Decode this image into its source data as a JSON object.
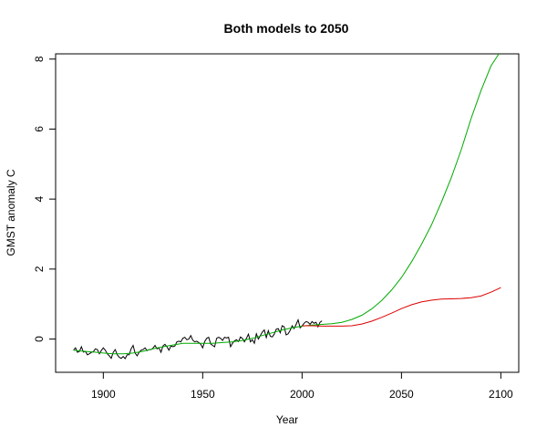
{
  "chart_data": {
    "type": "line",
    "title": "Both models to 2050",
    "xlabel": "Year",
    "ylabel": "GMST anomaly C",
    "xlim": [
      1876,
      2109
    ],
    "ylim": [
      -0.95,
      8.15
    ],
    "xticks": [
      1900,
      1950,
      2000,
      2050,
      2100
    ],
    "yticks": [
      0,
      2,
      4,
      6,
      8
    ],
    "grid": false,
    "legend": "none",
    "series": [
      {
        "color": "#000000",
        "x": [
          1885,
          1886,
          1887,
          1888,
          1889,
          1890,
          1891,
          1892,
          1893,
          1894,
          1895,
          1896,
          1897,
          1898,
          1899,
          1900,
          1901,
          1902,
          1903,
          1904,
          1905,
          1906,
          1907,
          1908,
          1909,
          1910,
          1911,
          1912,
          1913,
          1914,
          1915,
          1916,
          1917,
          1918,
          1919,
          1920,
          1921,
          1922,
          1923,
          1924,
          1925,
          1926,
          1927,
          1928,
          1929,
          1930,
          1931,
          1932,
          1933,
          1934,
          1935,
          1936,
          1937,
          1938,
          1939,
          1940,
          1941,
          1942,
          1943,
          1944,
          1945,
          1946,
          1947,
          1948,
          1949,
          1950,
          1951,
          1952,
          1953,
          1954,
          1955,
          1956,
          1957,
          1958,
          1959,
          1960,
          1961,
          1962,
          1963,
          1964,
          1965,
          1966,
          1967,
          1968,
          1969,
          1970,
          1971,
          1972,
          1973,
          1974,
          1975,
          1976,
          1977,
          1978,
          1979,
          1980,
          1981,
          1982,
          1983,
          1984,
          1985,
          1986,
          1987,
          1988,
          1989,
          1990,
          1991,
          1992,
          1993,
          1994,
          1995,
          1996,
          1997,
          1998,
          1999,
          2000,
          2001,
          2002,
          2003,
          2004,
          2005,
          2006,
          2007,
          2008,
          2009,
          2010
        ],
        "values": [
          -0.32,
          -0.25,
          -0.38,
          -0.35,
          -0.22,
          -0.37,
          -0.35,
          -0.45,
          -0.42,
          -0.38,
          -0.36,
          -0.28,
          -0.3,
          -0.42,
          -0.33,
          -0.25,
          -0.32,
          -0.42,
          -0.48,
          -0.55,
          -0.38,
          -0.3,
          -0.45,
          -0.52,
          -0.55,
          -0.5,
          -0.56,
          -0.45,
          -0.45,
          -0.28,
          -0.18,
          -0.4,
          -0.48,
          -0.38,
          -0.32,
          -0.3,
          -0.25,
          -0.33,
          -0.3,
          -0.3,
          -0.26,
          -0.18,
          -0.28,
          -0.25,
          -0.38,
          -0.2,
          -0.15,
          -0.22,
          -0.32,
          -0.2,
          -0.22,
          -0.2,
          -0.08,
          -0.06,
          -0.08,
          0.02,
          0.05,
          -0.02,
          0.0,
          0.1,
          -0.03,
          -0.08,
          -0.06,
          -0.1,
          -0.15,
          -0.25,
          -0.07,
          0.02,
          0.05,
          -0.14,
          -0.18,
          -0.22,
          0.02,
          0.05,
          0.02,
          -0.04,
          0.05,
          0.03,
          0.05,
          -0.22,
          -0.12,
          -0.05,
          -0.02,
          -0.07,
          0.06,
          0.02,
          -0.08,
          0.02,
          0.14,
          -0.08,
          -0.02,
          -0.12,
          0.15,
          0.0,
          0.1,
          0.2,
          0.26,
          0.04,
          0.24,
          0.08,
          0.06,
          0.14,
          0.28,
          0.3,
          0.18,
          0.38,
          0.35,
          0.12,
          0.15,
          0.25,
          0.38,
          0.3,
          0.42,
          0.55,
          0.32,
          0.38,
          0.45,
          0.5,
          0.48,
          0.42,
          0.5,
          0.45,
          0.48,
          0.35,
          0.48,
          0.52
        ]
      },
      {
        "color": "#00aa00",
        "x": [
          1885,
          1890,
          1895,
          1900,
          1905,
          1910,
          1915,
          1920,
          1925,
          1930,
          1935,
          1940,
          1945,
          1950,
          1955,
          1960,
          1965,
          1970,
          1975,
          1980,
          1985,
          1990,
          1995,
          2000,
          2005,
          2010,
          2015,
          2020,
          2025,
          2030,
          2035,
          2040,
          2045,
          2050,
          2055,
          2060,
          2065,
          2070,
          2075,
          2080,
          2085,
          2090,
          2095,
          2099
        ],
        "values": [
          -0.32,
          -0.35,
          -0.37,
          -0.4,
          -0.42,
          -0.42,
          -0.4,
          -0.35,
          -0.28,
          -0.22,
          -0.17,
          -0.12,
          -0.12,
          -0.12,
          -0.12,
          -0.1,
          -0.08,
          -0.04,
          0.02,
          0.1,
          0.18,
          0.26,
          0.32,
          0.37,
          0.4,
          0.42,
          0.44,
          0.48,
          0.56,
          0.68,
          0.86,
          1.1,
          1.4,
          1.76,
          2.2,
          2.7,
          3.25,
          3.9,
          4.6,
          5.4,
          6.3,
          7.1,
          7.8,
          8.15
        ]
      },
      {
        "color": "#dd0000",
        "x": [
          2000,
          2005,
          2010,
          2015,
          2020,
          2025,
          2030,
          2035,
          2040,
          2045,
          2050,
          2055,
          2060,
          2065,
          2070,
          2075,
          2080,
          2085,
          2090,
          2095,
          2100
        ],
        "values": [
          0.38,
          0.38,
          0.37,
          0.37,
          0.37,
          0.38,
          0.43,
          0.51,
          0.62,
          0.74,
          0.87,
          0.98,
          1.06,
          1.11,
          1.14,
          1.15,
          1.16,
          1.18,
          1.23,
          1.34,
          1.47
        ]
      }
    ]
  }
}
